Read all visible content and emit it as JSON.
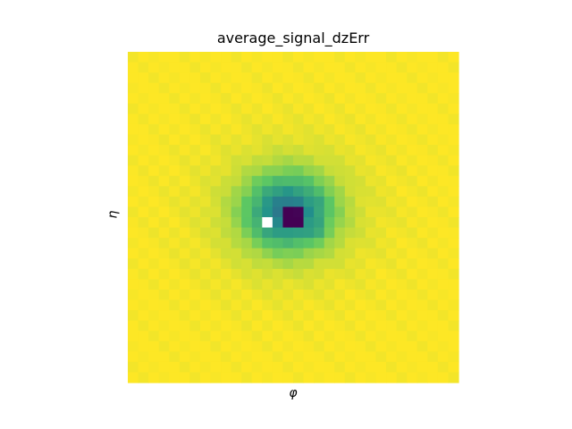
{
  "chart_data": {
    "type": "heatmap",
    "title": "average_signal_dzErr",
    "xlabel": "φ",
    "ylabel": "η",
    "grid": false,
    "colormap": "viridis",
    "rows": 32,
    "cols": 32,
    "center": [
      15,
      15
    ],
    "note_missing_cell": [
      16,
      13
    ],
    "value_range": [
      0,
      1
    ]
  }
}
